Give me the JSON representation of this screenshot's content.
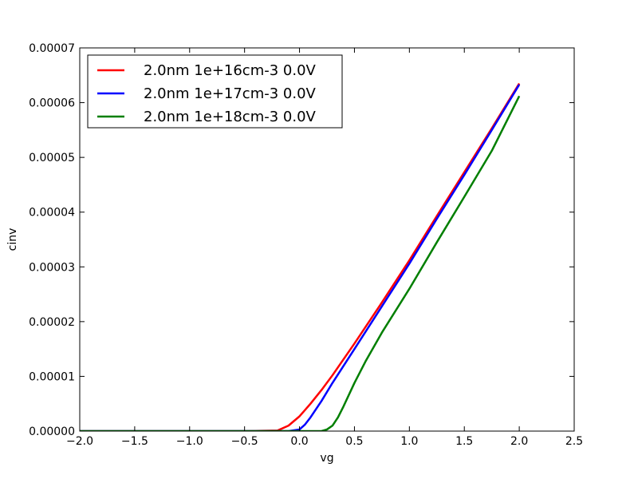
{
  "chart_data": {
    "type": "line",
    "title": "",
    "xlabel": "vg",
    "ylabel": "cinv",
    "xlim": [
      -2.0,
      2.5
    ],
    "ylim": [
      0.0,
      7e-05
    ],
    "x_ticks": [
      "−2.0",
      "−1.5",
      "−1.0",
      "−0.5",
      "0.0",
      "0.5",
      "1.0",
      "1.5",
      "2.0",
      "2.5"
    ],
    "x_tick_values": [
      -2.0,
      -1.5,
      -1.0,
      -0.5,
      0.0,
      0.5,
      1.0,
      1.5,
      2.0,
      2.5
    ],
    "y_ticks": [
      "0.00000",
      "0.00001",
      "0.00002",
      "0.00003",
      "0.00004",
      "0.00005",
      "0.00006",
      "0.00007"
    ],
    "y_tick_values": [
      0.0,
      1e-05,
      2e-05,
      3e-05,
      4e-05,
      5e-05,
      6e-05,
      7e-05
    ],
    "grid": false,
    "legend_position": "top-left",
    "series": [
      {
        "name": "2.0nm 1e+16cm-3 0.0V",
        "color": "#ff0000",
        "x": [
          -2.0,
          -0.5,
          -0.2,
          -0.1,
          0.0,
          0.1,
          0.2,
          0.3,
          0.5,
          0.75,
          1.0,
          1.25,
          1.5,
          1.75,
          2.0
        ],
        "y": [
          0.0,
          0.0,
          1e-07,
          1e-06,
          2.7e-06,
          5e-06,
          7.5e-06,
          1.02e-05,
          1.6e-05,
          2.35e-05,
          3.12e-05,
          3.93e-05,
          4.73e-05,
          5.53e-05,
          6.35e-05
        ]
      },
      {
        "name": "2.0nm 1e+17cm-3 0.0V",
        "color": "#0000ff",
        "x": [
          -2.0,
          -0.1,
          0.0,
          0.05,
          0.1,
          0.2,
          0.3,
          0.5,
          0.75,
          1.0,
          1.25,
          1.5,
          1.75,
          2.0
        ],
        "y": [
          0.0,
          0.0,
          3e-07,
          1.2e-06,
          2.5e-06,
          5.5e-06,
          8.8e-06,
          1.5e-05,
          2.28e-05,
          3.06e-05,
          3.88e-05,
          4.68e-05,
          5.5e-05,
          6.33e-05
        ]
      },
      {
        "name": "2.0nm 1e+18cm-3 0.0V",
        "color": "#007f00",
        "x": [
          -2.0,
          0.2,
          0.25,
          0.3,
          0.35,
          0.4,
          0.5,
          0.6,
          0.75,
          1.0,
          1.25,
          1.5,
          1.75,
          2.0
        ],
        "y": [
          0.0,
          0.0,
          3e-07,
          1e-06,
          2.5e-06,
          4.5e-06,
          8.8e-06,
          1.27e-05,
          1.8e-05,
          2.6e-05,
          3.45e-05,
          4.28e-05,
          5.12e-05,
          6.12e-05
        ]
      }
    ]
  }
}
